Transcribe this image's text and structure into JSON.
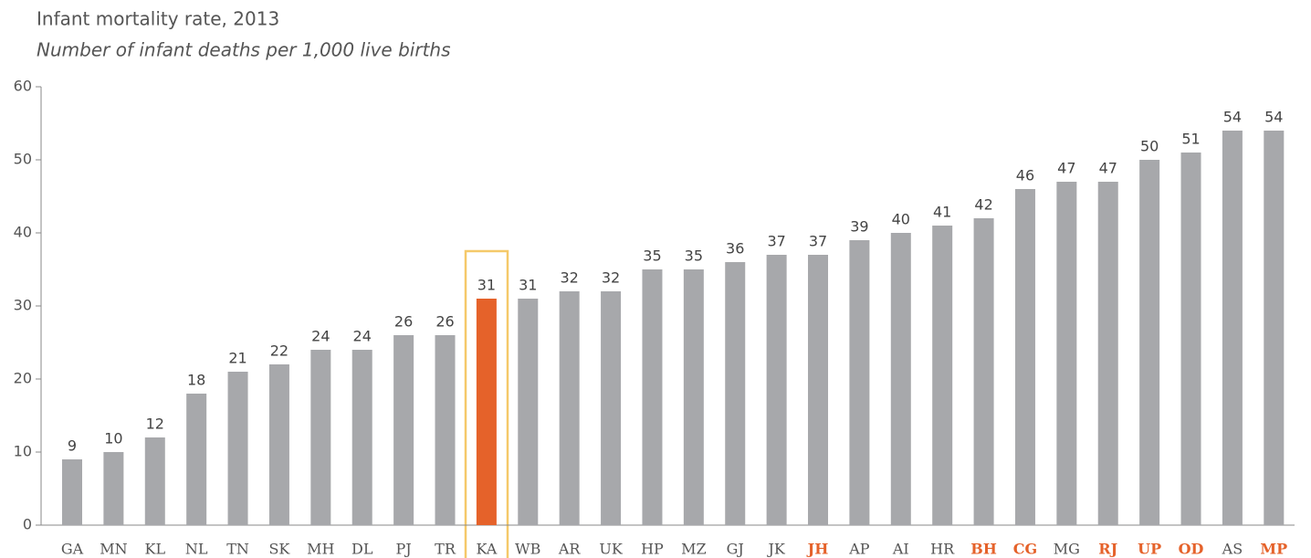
{
  "chart_data": {
    "type": "bar",
    "title": "Infant mortality rate, 2013",
    "subtitle": "Number of infant deaths per 1,000 live births",
    "categories": [
      "GA",
      "MN",
      "KL",
      "NL",
      "TN",
      "SK",
      "MH",
      "DL",
      "PJ",
      "TR",
      "KA",
      "WB",
      "AR",
      "UK",
      "HP",
      "MZ",
      "GJ",
      "JK",
      "JH",
      "AP",
      "AI",
      "HR",
      "BH",
      "CG",
      "MG",
      "RJ",
      "UP",
      "OD",
      "AS",
      "MP"
    ],
    "values": [
      9,
      10,
      12,
      18,
      21,
      22,
      24,
      24,
      26,
      26,
      31,
      31,
      32,
      32,
      35,
      35,
      36,
      37,
      37,
      39,
      40,
      41,
      42,
      46,
      47,
      47,
      50,
      51,
      54,
      54
    ],
    "colors": [
      "#a7a8ab",
      "#a7a8ab",
      "#a7a8ab",
      "#a7a8ab",
      "#a7a8ab",
      "#a7a8ab",
      "#a7a8ab",
      "#a7a8ab",
      "#a7a8ab",
      "#a7a8ab",
      "#e5622a",
      "#a7a8ab",
      "#a7a8ab",
      "#a7a8ab",
      "#a7a8ab",
      "#a7a8ab",
      "#a7a8ab",
      "#a7a8ab",
      "#a7a8ab",
      "#a7a8ab",
      "#a7a8ab",
      "#a7a8ab",
      "#a7a8ab",
      "#a7a8ab",
      "#a7a8ab",
      "#a7a8ab",
      "#a7a8ab",
      "#a7a8ab",
      "#a7a8ab",
      "#a7a8ab"
    ],
    "category_colors": [
      "#555555",
      "#555555",
      "#555555",
      "#555555",
      "#555555",
      "#555555",
      "#555555",
      "#555555",
      "#555555",
      "#555555",
      "#555555",
      "#555555",
      "#555555",
      "#555555",
      "#555555",
      "#555555",
      "#555555",
      "#555555",
      "#e5622a",
      "#555555",
      "#555555",
      "#555555",
      "#e5622a",
      "#e5622a",
      "#555555",
      "#e5622a",
      "#e5622a",
      "#e5622a",
      "#555555",
      "#e5622a"
    ],
    "ylim": [
      0,
      60
    ],
    "yticks": [
      0,
      10,
      20,
      30,
      40,
      50,
      60
    ]
  }
}
